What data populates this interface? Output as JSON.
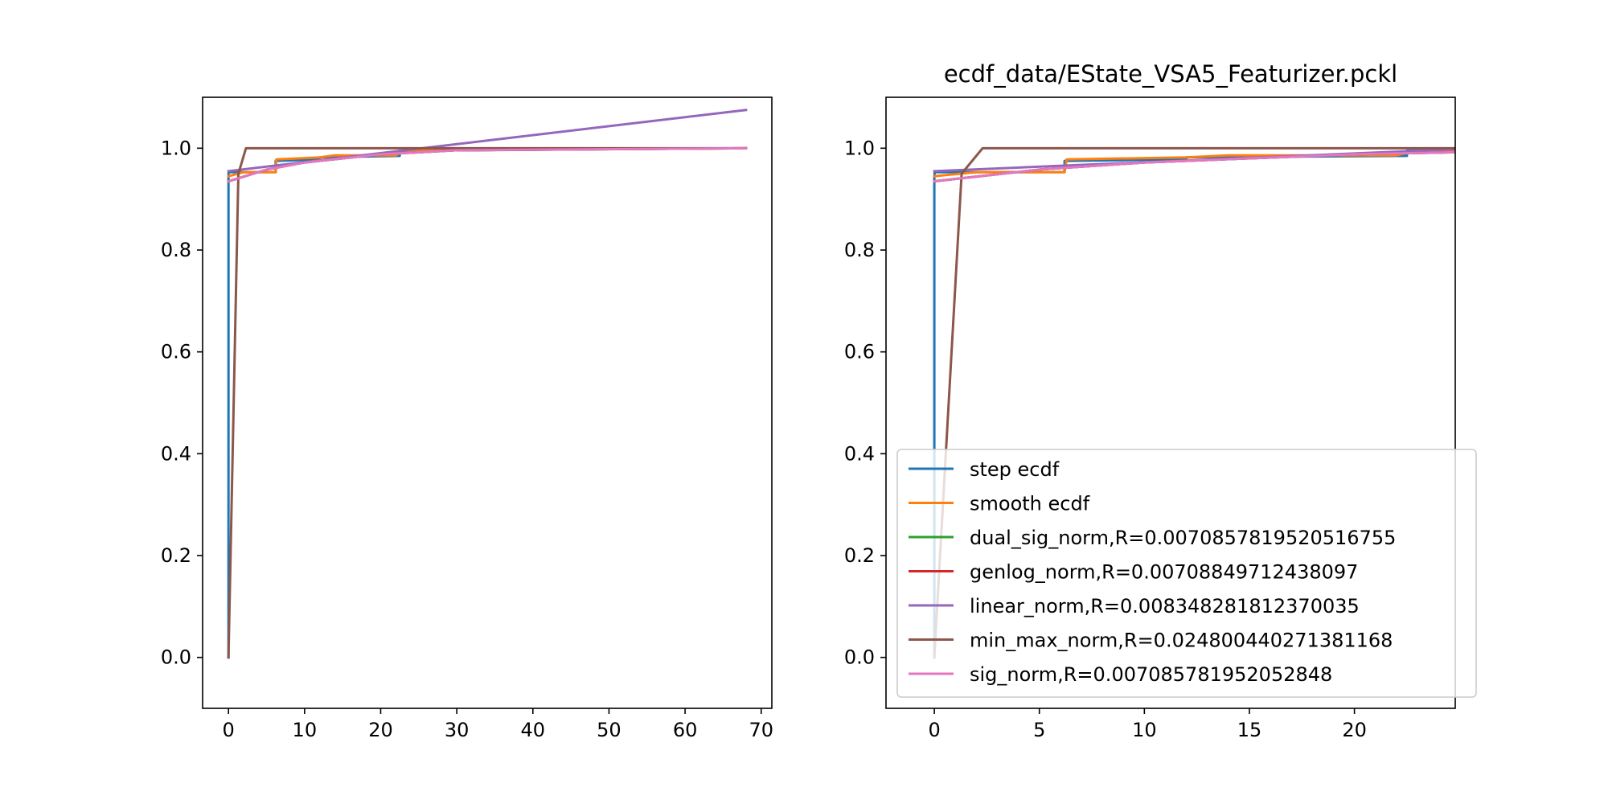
{
  "chart_data": [
    {
      "type": "line",
      "title": "",
      "xlabel": "",
      "ylabel": "",
      "xlim": [
        -3.4,
        71.4
      ],
      "ylim": [
        -0.1,
        1.1
      ],
      "xticks": [
        "0",
        "10",
        "20",
        "30",
        "40",
        "50",
        "60",
        "70"
      ],
      "xtick_values": [
        0,
        10,
        20,
        30,
        40,
        50,
        60,
        70
      ],
      "yticks": [
        "0.0",
        "0.2",
        "0.4",
        "0.6",
        "0.8",
        "1.0"
      ],
      "ytick_values": [
        0.0,
        0.2,
        0.4,
        0.6,
        0.8,
        1.0
      ],
      "legend": false,
      "series": [
        {
          "name": "step ecdf",
          "color": "#1f77b4",
          "x": [
            0,
            0,
            0.02,
            6.2,
            6.2,
            12,
            12,
            22.5,
            22.5,
            68
          ],
          "y": [
            0,
            0.945,
            0.953,
            0.953,
            0.975,
            0.978,
            0.982,
            0.985,
            0.995,
            1.0
          ]
        },
        {
          "name": "smooth ecdf",
          "color": "#ff7f0e",
          "x": [
            0,
            2,
            6.2,
            6.3,
            12,
            14,
            22,
            23,
            30,
            68
          ],
          "y": [
            0.945,
            0.953,
            0.953,
            0.978,
            0.982,
            0.986,
            0.986,
            0.995,
            0.998,
            1.0
          ]
        },
        {
          "name": "dual_sig_norm,R=0.0070857819520516755",
          "color": "#2ca02c",
          "x": [
            0,
            5,
            10,
            20,
            30,
            68
          ],
          "y": [
            0.935,
            0.958,
            0.972,
            0.988,
            0.996,
            1.0
          ]
        },
        {
          "name": "genlog_norm,R=0.00708849712438097",
          "color": "#d62728",
          "x": [
            0,
            5,
            10,
            20,
            30,
            68
          ],
          "y": [
            0.935,
            0.958,
            0.972,
            0.988,
            0.996,
            1.0
          ]
        },
        {
          "name": "linear_norm,R=0.008348281812370035",
          "color": "#9467bd",
          "x": [
            0,
            68
          ],
          "y": [
            0.955,
            1.075
          ]
        },
        {
          "name": "min_max_norm,R=0.024800440271381168",
          "color": "#8c564b",
          "x": [
            0,
            1.3,
            2.3,
            68
          ],
          "y": [
            0,
            0.95,
            1.0,
            1.0
          ]
        },
        {
          "name": "sig_norm,R=0.007085781952052848",
          "color": "#e377c2",
          "x": [
            0,
            5,
            10,
            20,
            30,
            68
          ],
          "y": [
            0.935,
            0.958,
            0.972,
            0.988,
            0.996,
            1.0
          ]
        }
      ]
    },
    {
      "type": "line",
      "title": "ecdf_data/EState_VSA5_Featurizer.pckl",
      "xlabel": "",
      "ylabel": "",
      "xlim": [
        -2.3,
        24.8
      ],
      "ylim": [
        -0.1,
        1.1
      ],
      "xticks": [
        "0",
        "5",
        "10",
        "15",
        "20"
      ],
      "xtick_values": [
        0,
        5,
        10,
        15,
        20
      ],
      "yticks": [
        "0.0",
        "0.2",
        "0.4",
        "0.6",
        "0.8",
        "1.0"
      ],
      "ytick_values": [
        0.0,
        0.2,
        0.4,
        0.6,
        0.8,
        1.0
      ],
      "legend": true,
      "legend_location": "lower-right",
      "series": [
        {
          "name": "step ecdf",
          "color": "#1f77b4",
          "x": [
            0,
            0,
            0.02,
            6.2,
            6.2,
            12,
            12,
            22.5,
            22.5,
            24.8
          ],
          "y": [
            0,
            0.945,
            0.953,
            0.953,
            0.975,
            0.978,
            0.982,
            0.985,
            0.995,
            0.997
          ]
        },
        {
          "name": "smooth ecdf",
          "color": "#ff7f0e",
          "x": [
            0,
            2,
            6.2,
            6.3,
            12,
            14,
            22,
            23,
            24.8
          ],
          "y": [
            0.945,
            0.953,
            0.953,
            0.978,
            0.982,
            0.986,
            0.986,
            0.995,
            0.996
          ]
        },
        {
          "name": "dual_sig_norm,R=0.0070857819520516755",
          "color": "#2ca02c",
          "x": [
            0,
            5,
            10,
            20,
            24.8
          ],
          "y": [
            0.935,
            0.958,
            0.972,
            0.988,
            0.992
          ]
        },
        {
          "name": "genlog_norm,R=0.00708849712438097",
          "color": "#d62728",
          "x": [
            0,
            5,
            10,
            20,
            24.8
          ],
          "y": [
            0.935,
            0.958,
            0.972,
            0.988,
            0.992
          ]
        },
        {
          "name": "linear_norm,R=0.008348281812370035",
          "color": "#9467bd",
          "x": [
            0,
            24.8
          ],
          "y": [
            0.955,
            0.998
          ]
        },
        {
          "name": "min_max_norm,R=0.024800440271381168",
          "color": "#8c564b",
          "x": [
            0,
            1.3,
            2.3,
            24.8
          ],
          "y": [
            0,
            0.95,
            1.0,
            1.0
          ]
        },
        {
          "name": "sig_norm,R=0.007085781952052848",
          "color": "#e377c2",
          "x": [
            0,
            5,
            10,
            20,
            24.8
          ],
          "y": [
            0.935,
            0.958,
            0.972,
            0.988,
            0.992
          ]
        }
      ]
    }
  ]
}
